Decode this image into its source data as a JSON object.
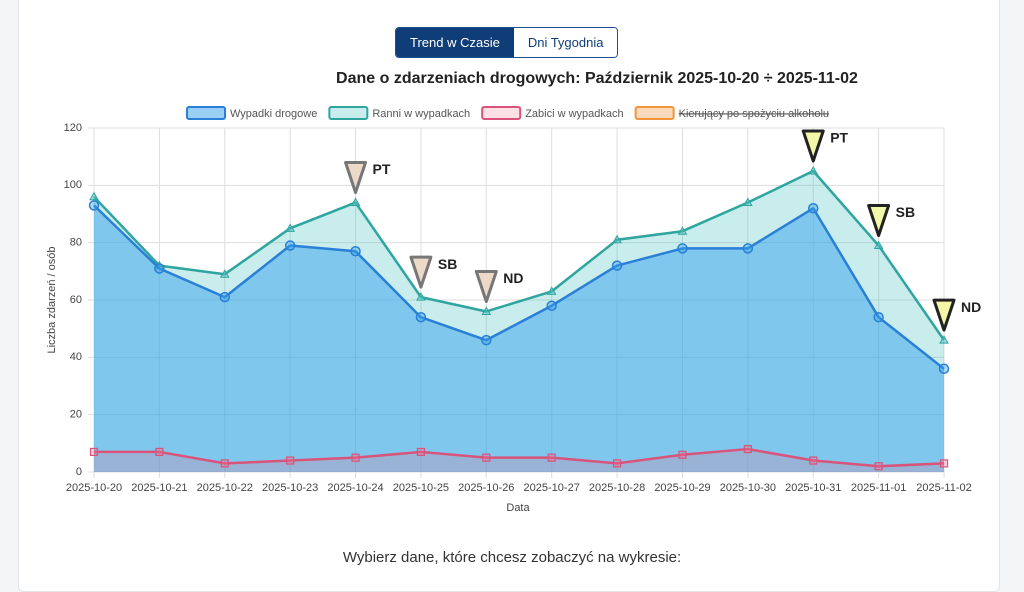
{
  "tabs": [
    {
      "label": "Trend w Czasie",
      "active": true
    },
    {
      "label": "Dni Tygodnia",
      "active": false
    }
  ],
  "prompt": "Wybierz dane, które chcesz zobaczyć na wykresie:",
  "chart_data": {
    "type": "line",
    "title": "Dane o zdarzeniach drogowych: Październik 2025-10-20 ÷ 2025-11-02",
    "x_label": "Data",
    "y_label": "Liczba zdarzeń / osób",
    "categories": [
      "2025-10-20",
      "2025-10-21",
      "2025-10-22",
      "2025-10-23",
      "2025-10-24",
      "2025-10-25",
      "2025-10-26",
      "2025-10-27",
      "2025-10-28",
      "2025-10-29",
      "2025-10-30",
      "2025-10-31",
      "2025-11-01",
      "2025-11-02"
    ],
    "series": [
      {
        "name": "Wypadki drogowe",
        "color": "#2a7fd6",
        "fill": "rgba(54,162,235,0.5)",
        "marker": "circle",
        "values": [
          93,
          71,
          61,
          79,
          77,
          54,
          46,
          58,
          72,
          78,
          78,
          92,
          54,
          36
        ]
      },
      {
        "name": "Ranni w wypadkach",
        "color": "#2ea59f",
        "fill": "rgba(75,192,192,0.3)",
        "marker": "triangle",
        "values": [
          96,
          72,
          69,
          85,
          94,
          61,
          56,
          63,
          81,
          84,
          94,
          105,
          79,
          46
        ]
      },
      {
        "name": "Zabici w wypadkach",
        "color": "#d9547a",
        "fill": "rgba(255,99,132,0.2)",
        "marker": "square",
        "values": [
          7,
          7,
          3,
          4,
          5,
          7,
          5,
          5,
          3,
          6,
          8,
          4,
          2,
          3
        ]
      }
    ],
    "hidden_series": [
      {
        "name": "Kierujący po spożyciu alkoholu",
        "color": "#f0953a"
      }
    ],
    "annotations": [
      {
        "x": "2025-10-24",
        "label": "PT",
        "color": "#ecd9c8"
      },
      {
        "x": "2025-10-25",
        "label": "SB",
        "color": "#ecd9c8"
      },
      {
        "x": "2025-10-26",
        "label": "ND",
        "color": "#ecd9c8"
      },
      {
        "x": "2025-10-31",
        "label": "PT",
        "color": "#f4f7a8"
      },
      {
        "x": "2025-11-01",
        "label": "SB",
        "color": "#f4f7a8"
      },
      {
        "x": "2025-11-02",
        "label": "ND",
        "color": "#f4f7a8"
      }
    ],
    "ylim": [
      0,
      120
    ],
    "yticks": [
      0,
      20,
      40,
      60,
      80,
      100,
      120
    ],
    "grid": true
  }
}
